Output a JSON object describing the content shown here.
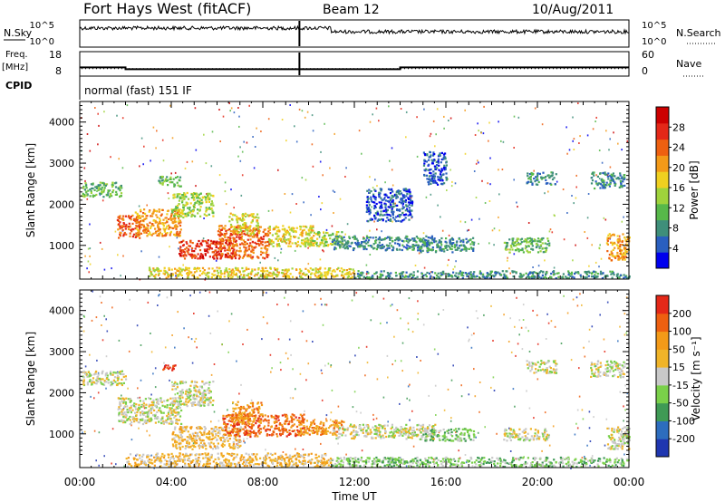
{
  "header": {
    "station": "Fort Hays West (fitACF)",
    "beam": "Beam 12",
    "date": "10/Aug/2011"
  },
  "noise_panel": {
    "left_label": "N.Sky",
    "right_label": "N.Search",
    "left_ticks": [
      "10^5",
      "10^0"
    ],
    "right_ticks": [
      "10^5",
      "10^0"
    ]
  },
  "freq_panel": {
    "left_label_1": "Freq.",
    "left_label_2": "[MHz]",
    "right_label": "Nave",
    "left_ticks": [
      "18",
      "8"
    ],
    "right_ticks": [
      "60",
      "0"
    ],
    "freq_steps": [
      {
        "x0": 0,
        "x1": 2.0,
        "mhz": 11.8
      },
      {
        "x0": 2.0,
        "x1": 14.0,
        "mhz": 10.8
      },
      {
        "x0": 14.0,
        "x1": 24,
        "mhz": 11.8
      }
    ],
    "nave_level": 15
  },
  "cpid": {
    "label": "CPID",
    "text": "normal (fast) 151 IF"
  },
  "chart_data": [
    {
      "type": "heatmap",
      "name": "power",
      "ylabel": "Slant Range [km]",
      "xlabel": "",
      "xlim": [
        0,
        24
      ],
      "ylim": [
        180,
        4500
      ],
      "yticks": [
        "1000",
        "2000",
        "3000",
        "4000"
      ],
      "colorbar": {
        "label": "Power [dB]",
        "ticks": [
          "4",
          "8",
          "12",
          "16",
          "20",
          "24",
          "28"
        ],
        "colors": [
          "#0000ee",
          "#2a5fbf",
          "#3f8f7a",
          "#57b84a",
          "#9fd33c",
          "#f0d020",
          "#f39a18",
          "#ee6010",
          "#e42818",
          "#cc0000"
        ]
      },
      "regions": [
        {
          "t0": 0.1,
          "t1": 1.8,
          "r0": 2200,
          "r1": 2550,
          "level": 3
        },
        {
          "t0": 1.6,
          "t1": 2.6,
          "r0": 1200,
          "r1": 1750,
          "level": 7
        },
        {
          "t0": 2.4,
          "t1": 4.4,
          "r0": 1250,
          "r1": 1900,
          "level": 6
        },
        {
          "t0": 4.0,
          "t1": 5.8,
          "r0": 1700,
          "r1": 2300,
          "level": 4
        },
        {
          "t0": 3.4,
          "t1": 4.4,
          "r0": 2450,
          "r1": 2700,
          "level": 3
        },
        {
          "t0": 4.3,
          "t1": 6.8,
          "r0": 700,
          "r1": 1150,
          "level": 8
        },
        {
          "t0": 6.0,
          "t1": 8.3,
          "r0": 700,
          "r1": 1500,
          "level": 7
        },
        {
          "t0": 6.5,
          "t1": 7.8,
          "r0": 1300,
          "r1": 1800,
          "level": 5
        },
        {
          "t0": 8.2,
          "t1": 10.2,
          "r0": 1000,
          "r1": 1500,
          "level": 5
        },
        {
          "t0": 9.8,
          "t1": 11.5,
          "r0": 1000,
          "r1": 1350,
          "level": 4
        },
        {
          "t0": 11.0,
          "t1": 15.5,
          "r0": 900,
          "r1": 1250,
          "level": 2
        },
        {
          "t0": 12.5,
          "t1": 14.5,
          "r0": 1600,
          "r1": 2400,
          "level": 1
        },
        {
          "t0": 14.8,
          "t1": 17.2,
          "r0": 850,
          "r1": 1200,
          "level": 2
        },
        {
          "t0": 15.0,
          "t1": 16.0,
          "r0": 2500,
          "r1": 3300,
          "level": 1
        },
        {
          "t0": 18.5,
          "t1": 20.5,
          "r0": 850,
          "r1": 1200,
          "level": 3
        },
        {
          "t0": 19.5,
          "t1": 20.8,
          "r0": 2500,
          "r1": 2800,
          "level": 2
        },
        {
          "t0": 22.3,
          "t1": 23.8,
          "r0": 2400,
          "r1": 2800,
          "level": 2
        },
        {
          "t0": 23.0,
          "t1": 24.0,
          "r0": 650,
          "r1": 1300,
          "level": 6
        },
        {
          "t0": 3.0,
          "t1": 12.0,
          "r0": 220,
          "r1": 480,
          "level": 5
        },
        {
          "t0": 12.0,
          "t1": 24.0,
          "r0": 220,
          "r1": 400,
          "level": 2
        }
      ]
    },
    {
      "type": "heatmap",
      "name": "velocity",
      "ylabel": "Slant Range [km]",
      "xlabel": "Time UT",
      "xlim": [
        0,
        24
      ],
      "ylim": [
        180,
        4500
      ],
      "xticks": [
        "00:00",
        "04:00",
        "08:00",
        "12:00",
        "16:00",
        "20:00",
        "00:00"
      ],
      "yticks": [
        "1000",
        "2000",
        "3000",
        "4000"
      ],
      "colorbar": {
        "label": "Velocity [m s⁻¹]",
        "ticks": [
          "200",
          "100",
          "50",
          "15",
          "-15",
          "-50",
          "-100",
          "-200"
        ],
        "colors": [
          "#1f36b0",
          "#2d6dbe",
          "#3f9a55",
          "#7ad04a",
          "#c8c8c8",
          "#f0b428",
          "#f39a18",
          "#ee6010",
          "#e42818"
        ]
      },
      "regions": [
        {
          "t0": 0.1,
          "t1": 2.0,
          "r0": 2200,
          "r1": 2550,
          "level": 4
        },
        {
          "t0": 1.6,
          "t1": 4.4,
          "r0": 1250,
          "r1": 1900,
          "level": 4
        },
        {
          "t0": 4.0,
          "t1": 5.8,
          "r0": 1700,
          "r1": 2300,
          "level": 4
        },
        {
          "t0": 3.6,
          "t1": 4.2,
          "r0": 2550,
          "r1": 2700,
          "level": 8
        },
        {
          "t0": 4.0,
          "t1": 7.0,
          "r0": 650,
          "r1": 1200,
          "level": 5
        },
        {
          "t0": 6.2,
          "t1": 9.8,
          "r0": 950,
          "r1": 1500,
          "level": 7
        },
        {
          "t0": 6.6,
          "t1": 8.0,
          "r0": 1300,
          "r1": 1800,
          "level": 6
        },
        {
          "t0": 9.5,
          "t1": 11.5,
          "r0": 1000,
          "r1": 1350,
          "level": 6
        },
        {
          "t0": 11.0,
          "t1": 15.5,
          "r0": 900,
          "r1": 1250,
          "level": 4
        },
        {
          "t0": 14.8,
          "t1": 17.2,
          "r0": 850,
          "r1": 1150,
          "level": 3
        },
        {
          "t0": 18.5,
          "t1": 20.5,
          "r0": 850,
          "r1": 1150,
          "level": 4
        },
        {
          "t0": 19.5,
          "t1": 20.8,
          "r0": 2500,
          "r1": 2800,
          "level": 4
        },
        {
          "t0": 22.3,
          "t1": 23.8,
          "r0": 2400,
          "r1": 2800,
          "level": 4
        },
        {
          "t0": 23.0,
          "t1": 24.0,
          "r0": 650,
          "r1": 1200,
          "level": 4
        },
        {
          "t0": 2.0,
          "t1": 11.0,
          "r0": 220,
          "r1": 550,
          "level": 5
        },
        {
          "t0": 11.0,
          "t1": 24.0,
          "r0": 220,
          "r1": 450,
          "level": 3
        }
      ]
    }
  ]
}
